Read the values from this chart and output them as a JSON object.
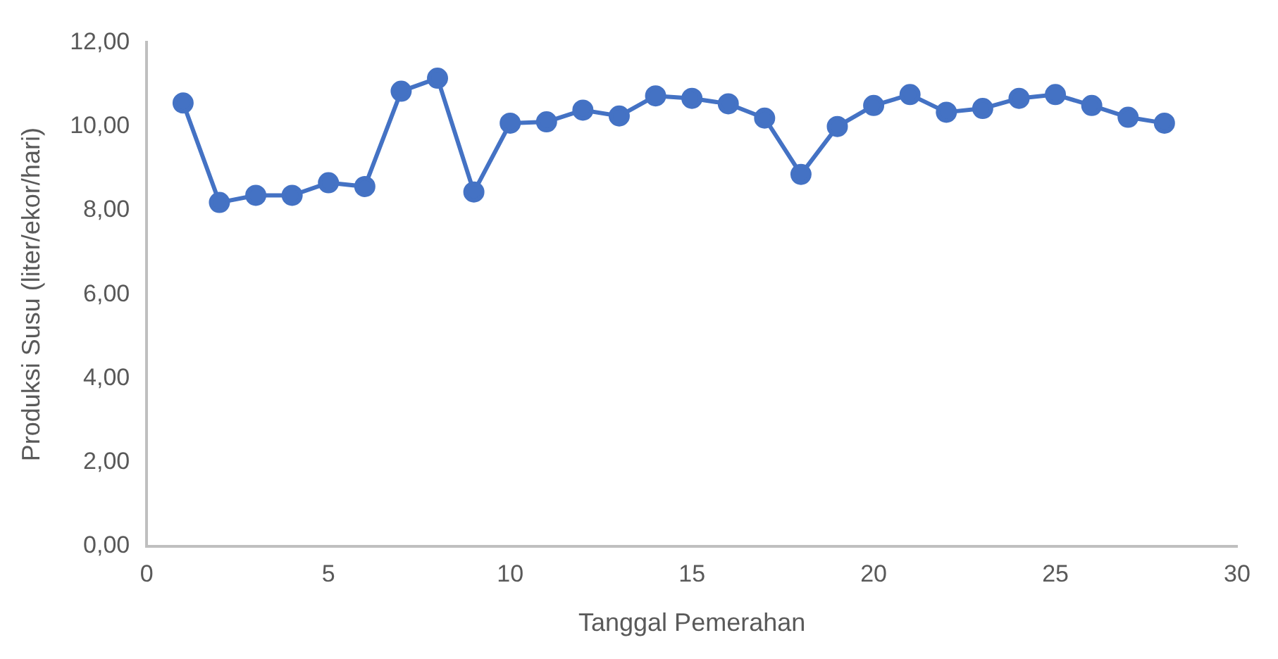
{
  "chart_data": {
    "type": "line",
    "xlabel": "Tanggal Pemerahan",
    "ylabel": "Produksi Susu (liter/ekor/hari)",
    "x": [
      1,
      2,
      3,
      4,
      5,
      6,
      7,
      8,
      9,
      10,
      11,
      12,
      13,
      14,
      15,
      16,
      17,
      18,
      19,
      20,
      21,
      22,
      23,
      24,
      25,
      26,
      27,
      28
    ],
    "series": [
      {
        "color": "#4472c4",
        "values": [
          10.56,
          8.19,
          8.36,
          8.36,
          8.66,
          8.57,
          10.84,
          11.15,
          8.44,
          10.08,
          10.11,
          10.39,
          10.25,
          10.73,
          10.67,
          10.54,
          10.2,
          8.86,
          10.0,
          10.5,
          10.76,
          10.34,
          10.43,
          10.67,
          10.76,
          10.5,
          10.22,
          10.08
        ]
      }
    ],
    "xlim": [
      0,
      30
    ],
    "xticks": [
      0,
      5,
      10,
      15,
      20,
      25,
      30
    ],
    "ylim": [
      0,
      12
    ],
    "yticks": [
      {
        "value": 0,
        "label": "0,00"
      },
      {
        "value": 2,
        "label": "2,00"
      },
      {
        "value": 4,
        "label": "4,00"
      },
      {
        "value": 6,
        "label": "6,00"
      },
      {
        "value": 8,
        "label": "8,00"
      },
      {
        "value": 10,
        "label": "10,00"
      },
      {
        "value": 12,
        "label": "12,00"
      }
    ],
    "grid": false,
    "legend": false,
    "marker": "circle"
  }
}
